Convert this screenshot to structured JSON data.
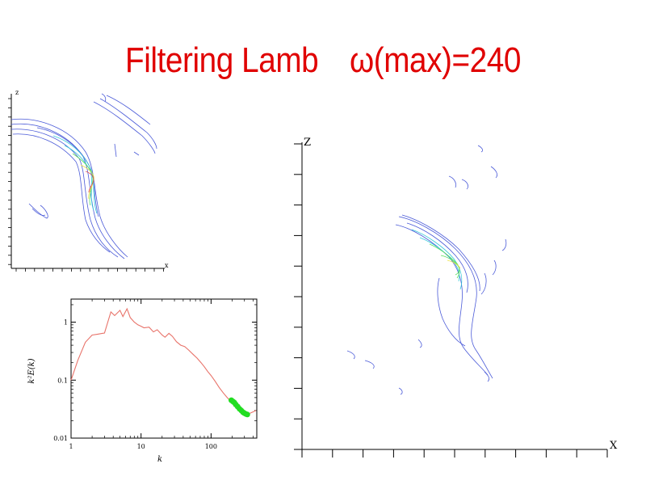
{
  "slide": {
    "title_main": "Filtering Lamb",
    "title_formula": "ω(max)=240"
  },
  "contour_left": {
    "x_axis_label": "x",
    "z_axis_label": "z"
  },
  "contour_right": {
    "x_axis_label": "X",
    "z_axis_label": "Z"
  },
  "colors": {
    "title": "#e00000",
    "spectrum_line": "#e8736a",
    "spectrum_filtered": "#22dd22",
    "contour_blue": "#4a5ad8",
    "contour_cyan": "#35c8d8",
    "contour_green": "#5ce05c",
    "contour_yellow": "#e8e040",
    "contour_red": "#e85050"
  },
  "chart_data": {
    "type": "line",
    "xlabel": "k",
    "ylabel": "k²E(k)",
    "x_scale": "log",
    "y_scale": "log",
    "xlim": [
      1,
      450
    ],
    "ylim": [
      0.01,
      2.5
    ],
    "x_ticks": [
      {
        "value": 1,
        "label": "1"
      },
      {
        "value": 10,
        "label": "10"
      },
      {
        "value": 100,
        "label": "100"
      }
    ],
    "y_ticks": [
      {
        "value": 0.01,
        "label": "0.01"
      },
      {
        "value": 0.1,
        "label": "0.1"
      },
      {
        "value": 1,
        "label": "1"
      }
    ],
    "series": [
      {
        "style": "line",
        "color": "#e8736a",
        "points": [
          [
            1,
            0.1
          ],
          [
            1.25,
            0.22
          ],
          [
            1.6,
            0.45
          ],
          [
            2,
            0.6
          ],
          [
            2.4,
            0.62
          ],
          [
            3,
            0.65
          ],
          [
            3.7,
            1.5
          ],
          [
            4.2,
            1.3
          ],
          [
            5,
            1.6
          ],
          [
            5.5,
            1.25
          ],
          [
            6.3,
            1.7
          ],
          [
            7,
            1.2
          ],
          [
            8,
            1.0
          ],
          [
            9,
            0.9
          ],
          [
            10,
            0.85
          ],
          [
            11,
            0.8
          ],
          [
            13,
            0.82
          ],
          [
            15,
            0.68
          ],
          [
            17,
            0.74
          ],
          [
            20,
            0.6
          ],
          [
            22,
            0.55
          ],
          [
            25,
            0.64
          ],
          [
            28,
            0.57
          ],
          [
            32,
            0.46
          ],
          [
            37,
            0.4
          ],
          [
            42,
            0.38
          ],
          [
            48,
            0.33
          ],
          [
            55,
            0.28
          ],
          [
            63,
            0.24
          ],
          [
            72,
            0.2
          ],
          [
            80,
            0.17
          ],
          [
            90,
            0.14
          ],
          [
            100,
            0.12
          ],
          [
            115,
            0.095
          ],
          [
            130,
            0.075
          ],
          [
            150,
            0.06
          ],
          [
            170,
            0.05
          ],
          [
            185,
            0.045
          ],
          [
            200,
            0.04
          ],
          [
            230,
            0.034
          ],
          [
            260,
            0.03
          ],
          [
            300,
            0.027
          ],
          [
            340,
            0.026
          ],
          [
            390,
            0.028
          ],
          [
            440,
            0.03
          ]
        ]
      },
      {
        "style": "filtered-band",
        "color": "#22dd22",
        "points": [
          [
            195,
            0.045
          ],
          [
            205,
            0.043
          ],
          [
            215,
            0.041
          ],
          [
            225,
            0.038
          ],
          [
            240,
            0.035
          ],
          [
            255,
            0.032
          ],
          [
            270,
            0.03
          ],
          [
            285,
            0.028
          ],
          [
            300,
            0.027
          ],
          [
            315,
            0.026
          ],
          [
            330,
            0.0255
          ]
        ]
      }
    ]
  }
}
